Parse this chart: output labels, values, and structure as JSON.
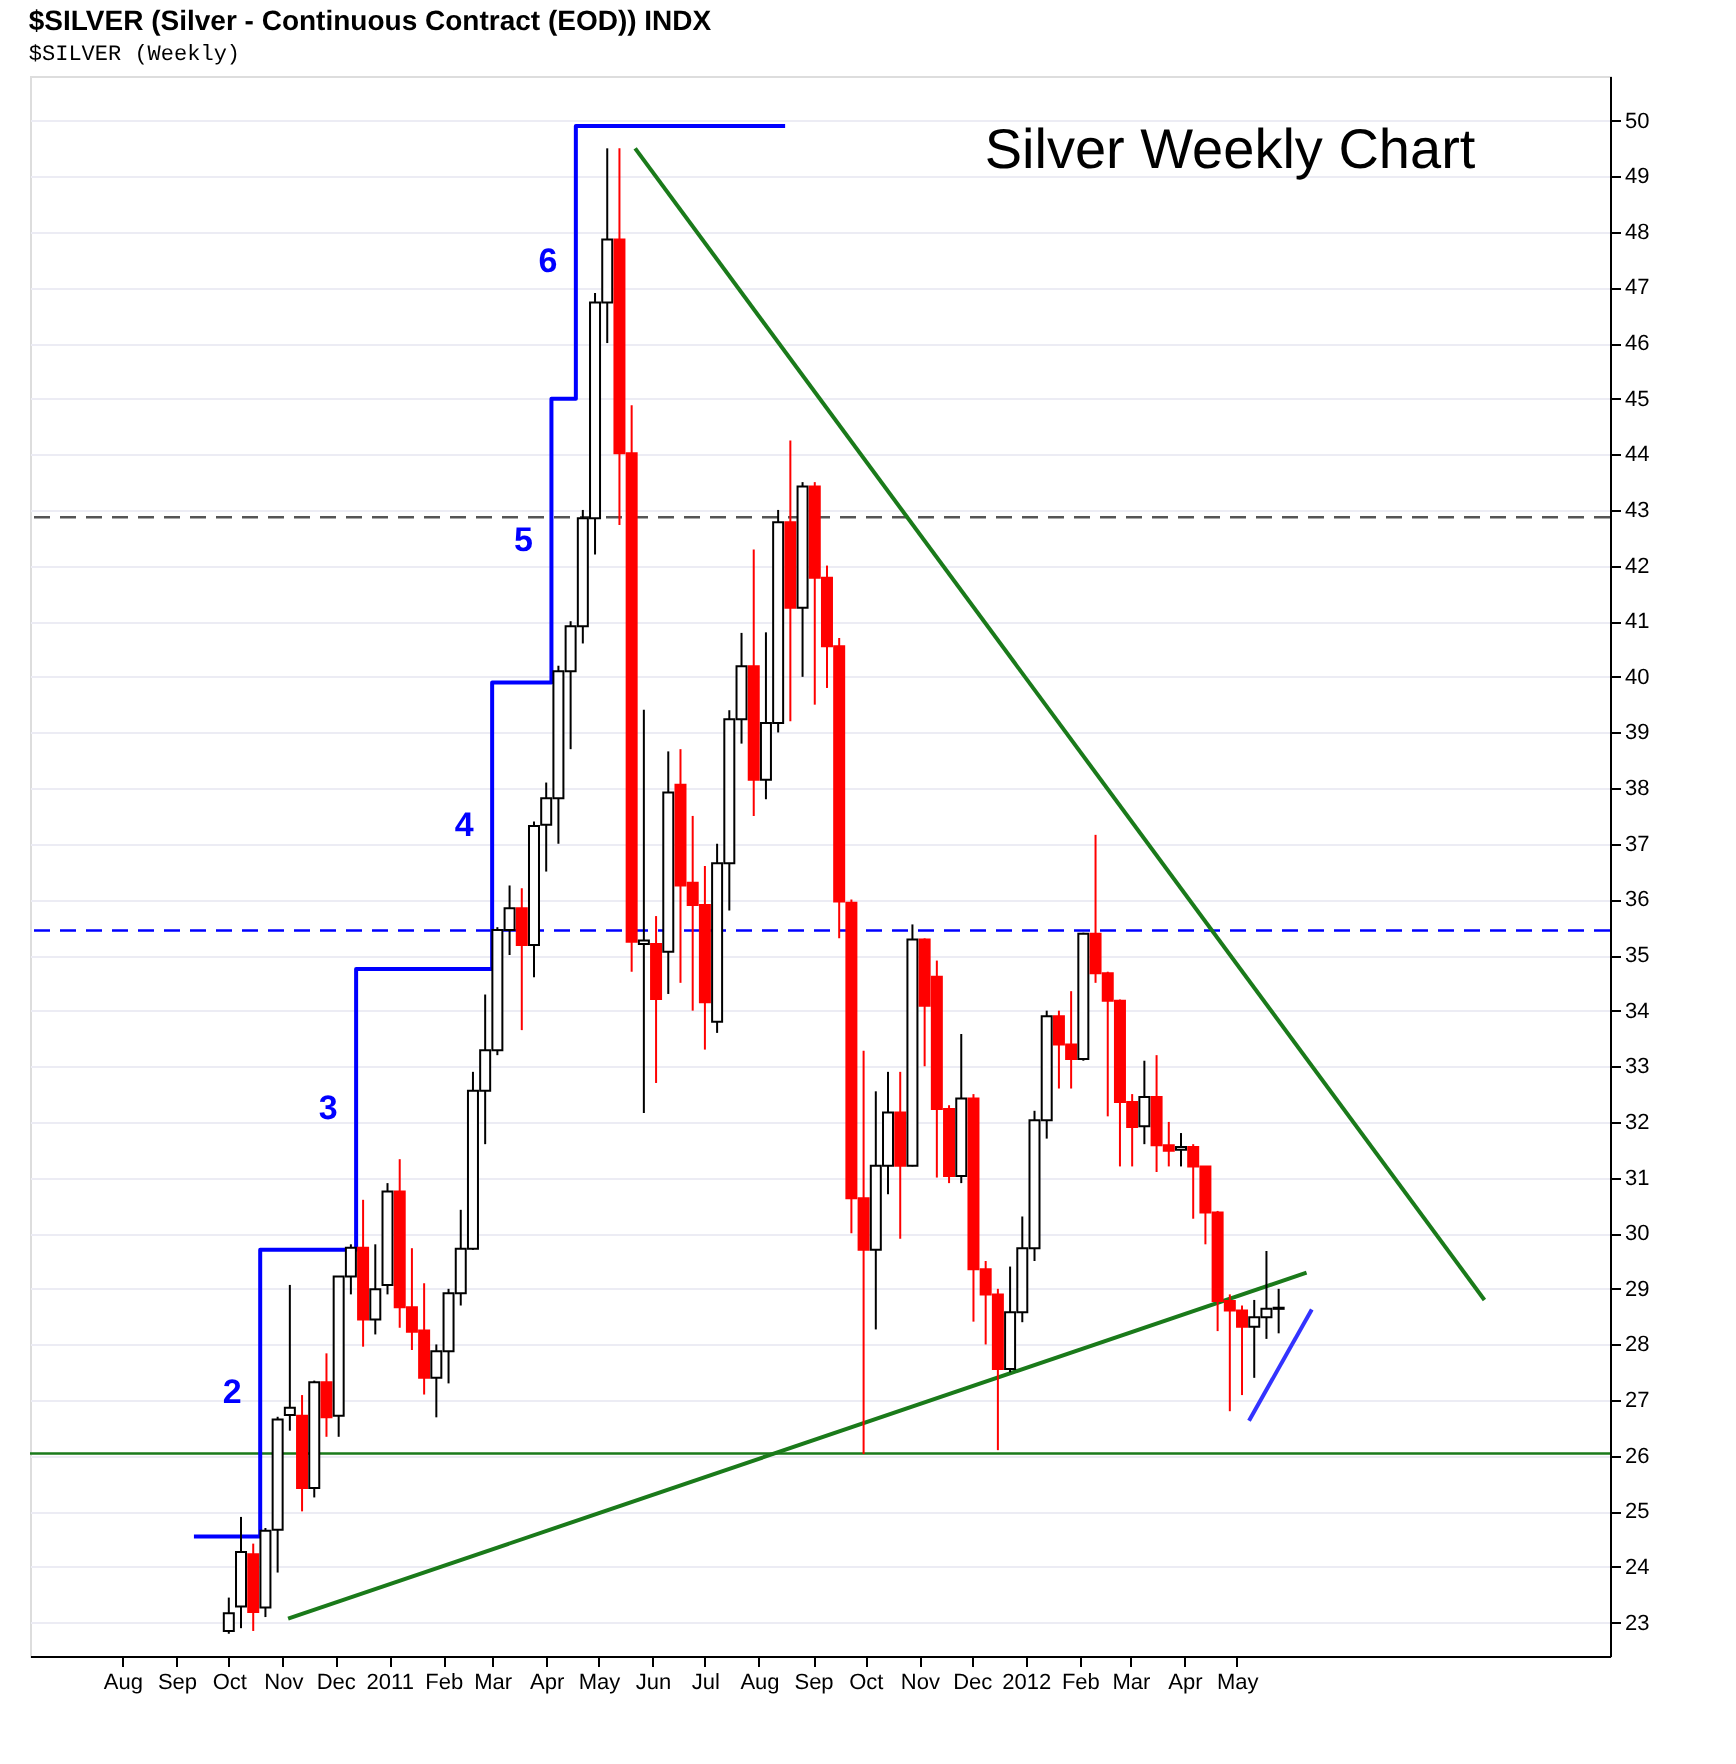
{
  "chart_data": {
    "type": "candlestick",
    "title": "$SILVER (Silver - Continuous Contract (EOD)) INDX",
    "subtitle": "$SILVER (Weekly)",
    "x": [
      "2010-10-01",
      "2010-10-08",
      "2010-10-15",
      "2010-10-22",
      "2010-10-29",
      "2010-11-05",
      "2010-11-12",
      "2010-11-19",
      "2010-11-26",
      "2010-12-03",
      "2010-12-10",
      "2010-12-17",
      "2010-12-24",
      "2010-12-31",
      "2011-01-07",
      "2011-01-14",
      "2011-01-21",
      "2011-01-28",
      "2011-02-04",
      "2011-02-11",
      "2011-02-18",
      "2011-02-25",
      "2011-03-04",
      "2011-03-11",
      "2011-03-18",
      "2011-03-25",
      "2011-04-01",
      "2011-04-08",
      "2011-04-15",
      "2011-04-22",
      "2011-04-29",
      "2011-05-06",
      "2011-05-13",
      "2011-05-20",
      "2011-05-27",
      "2011-06-03",
      "2011-06-10",
      "2011-06-17",
      "2011-06-24",
      "2011-07-01",
      "2011-07-08",
      "2011-07-15",
      "2011-07-22",
      "2011-07-29",
      "2011-08-05",
      "2011-08-12",
      "2011-08-19",
      "2011-08-26",
      "2011-09-02",
      "2011-09-09",
      "2011-09-16",
      "2011-09-23",
      "2011-09-30",
      "2011-10-07",
      "2011-10-14",
      "2011-10-21",
      "2011-10-28",
      "2011-11-04",
      "2011-11-11",
      "2011-11-18",
      "2011-11-25",
      "2011-12-02",
      "2011-12-09",
      "2011-12-16",
      "2011-12-23",
      "2011-12-30",
      "2012-01-06",
      "2012-01-13",
      "2012-01-20",
      "2012-01-27",
      "2012-02-03",
      "2012-02-10",
      "2012-02-17",
      "2012-02-24",
      "2012-03-02",
      "2012-03-09",
      "2012-03-16",
      "2012-03-23",
      "2012-03-30",
      "2012-04-06",
      "2012-04-13",
      "2012-04-20",
      "2012-04-27",
      "2012-05-04",
      "2012-05-11",
      "2012-05-18",
      "2012-05-25"
    ],
    "ohlc": [
      [
        22.85,
        23.45,
        22.8,
        23.17
      ],
      [
        23.29,
        24.9,
        22.9,
        24.27
      ],
      [
        24.23,
        24.42,
        22.85,
        23.19
      ],
      [
        23.27,
        24.7,
        23.1,
        24.65
      ],
      [
        24.67,
        26.7,
        23.9,
        26.65
      ],
      [
        26.73,
        29.07,
        26.45,
        26.86
      ],
      [
        26.72,
        27.09,
        25.0,
        25.42
      ],
      [
        25.42,
        27.35,
        25.25,
        27.32
      ],
      [
        27.32,
        27.84,
        26.34,
        26.69
      ],
      [
        26.72,
        29.22,
        26.34,
        29.22
      ],
      [
        29.22,
        29.8,
        28.9,
        29.74
      ],
      [
        29.74,
        30.6,
        27.96,
        28.45
      ],
      [
        28.45,
        29.8,
        28.18,
        28.99
      ],
      [
        29.07,
        30.9,
        28.9,
        30.75
      ],
      [
        30.75,
        31.33,
        28.3,
        28.67
      ],
      [
        28.67,
        29.73,
        27.9,
        28.23
      ],
      [
        28.25,
        29.1,
        27.1,
        27.4
      ],
      [
        27.4,
        28.0,
        26.69,
        27.88
      ],
      [
        27.88,
        29.0,
        27.3,
        28.92
      ],
      [
        28.92,
        30.42,
        28.7,
        29.72
      ],
      [
        29.72,
        32.9,
        29.7,
        32.56
      ],
      [
        32.56,
        34.29,
        31.6,
        33.29
      ],
      [
        33.29,
        35.5,
        33.2,
        35.45
      ],
      [
        35.45,
        36.25,
        35.0,
        35.84
      ],
      [
        35.84,
        36.2,
        33.65,
        35.18
      ],
      [
        35.18,
        37.4,
        34.6,
        37.32
      ],
      [
        37.34,
        38.1,
        36.5,
        37.82
      ],
      [
        37.82,
        40.2,
        37.0,
        40.1
      ],
      [
        40.1,
        41.0,
        38.7,
        40.91
      ],
      [
        40.91,
        43.0,
        40.6,
        42.85
      ],
      [
        42.85,
        46.9,
        42.2,
        46.73
      ],
      [
        46.73,
        49.5,
        46.0,
        47.86
      ],
      [
        47.86,
        49.5,
        42.73,
        44.02
      ],
      [
        44.02,
        44.88,
        34.7,
        35.24
      ],
      [
        35.2,
        39.41,
        32.16,
        35.26
      ],
      [
        35.2,
        35.7,
        32.7,
        34.21
      ],
      [
        35.06,
        38.66,
        34.3,
        37.92
      ],
      [
        38.06,
        38.7,
        34.5,
        36.25
      ],
      [
        36.3,
        37.5,
        34.0,
        35.9
      ],
      [
        35.9,
        36.6,
        33.3,
        34.15
      ],
      [
        33.8,
        37.0,
        33.6,
        36.65
      ],
      [
        36.65,
        39.4,
        35.8,
        39.24
      ],
      [
        39.24,
        40.79,
        38.8,
        40.19
      ],
      [
        40.19,
        42.29,
        37.5,
        38.15
      ],
      [
        38.15,
        40.8,
        37.8,
        39.17
      ],
      [
        39.17,
        43.0,
        39.0,
        42.78
      ],
      [
        42.78,
        44.25,
        39.2,
        41.24
      ],
      [
        41.24,
        43.5,
        40.0,
        43.42
      ],
      [
        43.42,
        43.5,
        39.5,
        41.78
      ],
      [
        41.78,
        42.0,
        39.8,
        40.55
      ],
      [
        40.55,
        40.7,
        35.3,
        35.96
      ],
      [
        35.94,
        36.0,
        30.0,
        30.63
      ],
      [
        30.63,
        33.28,
        26.03,
        29.7
      ],
      [
        29.7,
        32.55,
        28.27,
        31.21
      ],
      [
        31.21,
        32.9,
        30.7,
        32.17
      ],
      [
        32.17,
        32.9,
        29.9,
        31.21
      ],
      [
        31.21,
        35.55,
        31.2,
        35.28
      ],
      [
        35.28,
        35.3,
        33.0,
        34.09
      ],
      [
        34.61,
        34.9,
        31.0,
        32.23
      ],
      [
        32.23,
        32.3,
        30.9,
        31.03
      ],
      [
        31.03,
        33.58,
        30.9,
        32.42
      ],
      [
        32.42,
        32.5,
        28.41,
        29.35
      ],
      [
        29.35,
        29.5,
        28.0,
        28.9
      ],
      [
        28.9,
        29.0,
        26.1,
        27.56
      ],
      [
        27.56,
        29.4,
        27.5,
        28.58
      ],
      [
        28.58,
        30.3,
        28.4,
        29.73
      ],
      [
        29.73,
        32.2,
        29.5,
        32.03
      ],
      [
        32.03,
        34.0,
        31.7,
        33.9
      ],
      [
        33.9,
        34.0,
        32.6,
        33.39
      ],
      [
        33.39,
        34.35,
        32.6,
        33.13
      ],
      [
        33.13,
        35.4,
        33.1,
        35.38
      ],
      [
        35.38,
        37.16,
        34.5,
        34.67
      ],
      [
        34.67,
        34.7,
        32.1,
        34.18
      ],
      [
        34.18,
        34.2,
        31.2,
        32.36
      ],
      [
        32.36,
        32.5,
        31.2,
        31.91
      ],
      [
        31.92,
        33.1,
        31.6,
        32.45
      ],
      [
        32.45,
        33.2,
        31.1,
        31.58
      ],
      [
        31.58,
        32.0,
        31.2,
        31.48
      ],
      [
        31.5,
        31.8,
        31.2,
        31.55
      ],
      [
        31.55,
        31.6,
        30.26,
        31.2
      ],
      [
        31.2,
        31.2,
        29.8,
        30.37
      ],
      [
        30.37,
        30.4,
        28.24,
        28.78
      ],
      [
        28.78,
        28.9,
        26.8,
        28.61
      ],
      [
        28.61,
        28.7,
        27.09,
        28.32
      ],
      [
        28.32,
        28.8,
        27.4,
        28.49
      ],
      [
        28.49,
        29.68,
        28.1,
        28.64
      ],
      [
        28.64,
        29.0,
        28.2,
        28.66
      ]
    ],
    "colors": [
      "#ffffff",
      "#ffffff",
      "#ff0000",
      "#ffffff",
      "#ffffff",
      "#ffffff",
      "#ff0000",
      "#ffffff",
      "#ff0000",
      "#ffffff",
      "#ffffff",
      "#ff0000",
      "#ffffff",
      "#ffffff",
      "#ff0000",
      "#ff0000",
      "#ff0000",
      "#ffffff",
      "#ffffff",
      "#ffffff",
      "#ffffff",
      "#ffffff",
      "#ffffff",
      "#ffffff",
      "#ff0000",
      "#ffffff",
      "#ffffff",
      "#ffffff",
      "#ffffff",
      "#ffffff",
      "#ffffff",
      "#ffffff",
      "#ff0000",
      "#ff0000",
      "#ffffff",
      "#ff0000",
      "#ffffff",
      "#ff0000",
      "#ff0000",
      "#ff0000",
      "#ffffff",
      "#ffffff",
      "#ffffff",
      "#ff0000",
      "#ffffff",
      "#ffffff",
      "#ff0000",
      "#ffffff",
      "#ff0000",
      "#ff0000",
      "#ff0000",
      "#ff0000",
      "#ff0000",
      "#ffffff",
      "#ffffff",
      "#ff0000",
      "#ffffff",
      "#ff0000",
      "#ff0000",
      "#ff0000",
      "#ffffff",
      "#ff0000",
      "#ff0000",
      "#ff0000",
      "#ffffff",
      "#ffffff",
      "#ffffff",
      "#ffffff",
      "#ff0000",
      "#ff0000",
      "#ffffff",
      "#ff0000",
      "#ff0000",
      "#ff0000",
      "#ff0000",
      "#ffffff",
      "#ff0000",
      "#ff0000",
      "#ffffff",
      "#ff0000",
      "#ff0000",
      "#ff0000",
      "#ff0000",
      "#ff0000",
      "#ffffff",
      "#ffffff",
      "#ffffff"
    ],
    "series": [
      {
        "type": "step",
        "color": "#0000ff",
        "x": [
          "2010-09-11",
          "2010-10-19",
          "2010-12-13",
          "2011-03-01",
          "2011-04-04",
          "2011-04-18",
          "2011-08-16"
        ],
        "values": [
          24.55,
          29.7,
          34.75,
          39.9,
          45.0,
          49.9,
          49.9
        ]
      },
      {
        "type": "line",
        "color": "#1a7a1a",
        "x": [
          "2011-05-22",
          "2012-09-20"
        ],
        "values": [
          49.5,
          28.8
        ]
      },
      {
        "type": "line",
        "color": "#1a7a1a",
        "x": [
          "2010-11-04",
          "2012-06-10"
        ],
        "values": [
          23.07,
          29.29
        ]
      },
      {
        "type": "line",
        "color": "#3333ff",
        "x": [
          "2012-05-08",
          "2012-06-13"
        ],
        "values": [
          26.63,
          28.63
        ]
      }
    ],
    "ref_lines": [
      {
        "axis": "y",
        "value": 26.04,
        "color": "#1a7a1a",
        "line_style": "solid"
      },
      {
        "axis": "y",
        "value": 35.44,
        "color": "#0000ff",
        "line_style": "dashed"
      },
      {
        "axis": "y",
        "value": 42.87,
        "color": "#555555",
        "line_style": "dashed"
      }
    ],
    "annotations": [
      "Silver Weekly Chart",
      "2",
      "3",
      "4",
      "5",
      "6"
    ],
    "xlim": [
      "2010-06-09",
      "2012-12-01"
    ],
    "xticks": [
      {
        "value": "2010-08-01",
        "label": "Aug"
      },
      {
        "value": "2010-09-01",
        "label": "Sep"
      },
      {
        "value": "2010-10-01",
        "label": "Oct"
      },
      {
        "value": "2010-11-01",
        "label": "Nov"
      },
      {
        "value": "2010-12-01",
        "label": "Dec"
      },
      {
        "value": "2011-01-01",
        "label": "2011"
      },
      {
        "value": "2011-02-01",
        "label": "Feb"
      },
      {
        "value": "2011-03-01",
        "label": "Mar"
      },
      {
        "value": "2011-04-01",
        "label": "Apr"
      },
      {
        "value": "2011-05-01",
        "label": "May"
      },
      {
        "value": "2011-06-01",
        "label": "Jun"
      },
      {
        "value": "2011-07-01",
        "label": "Jul"
      },
      {
        "value": "2011-08-01",
        "label": "Aug"
      },
      {
        "value": "2011-09-01",
        "label": "Sep"
      },
      {
        "value": "2011-10-01",
        "label": "Oct"
      },
      {
        "value": "2011-11-01",
        "label": "Nov"
      },
      {
        "value": "2011-12-01",
        "label": "Dec"
      },
      {
        "value": "2012-01-01",
        "label": "2012"
      },
      {
        "value": "2012-02-01",
        "label": "Feb"
      },
      {
        "value": "2012-03-01",
        "label": "Mar"
      },
      {
        "value": "2012-04-01",
        "label": "Apr"
      },
      {
        "value": "2012-05-01",
        "label": "May"
      }
    ],
    "ylim": [
      22.4,
      50.8
    ],
    "yticks": [
      23,
      24,
      25,
      26,
      27,
      28,
      29,
      30,
      31,
      32,
      33,
      34,
      35,
      36,
      37,
      38,
      39,
      40,
      41,
      42,
      43,
      44,
      45,
      46,
      47,
      48,
      49,
      50
    ],
    "grid": "y"
  }
}
